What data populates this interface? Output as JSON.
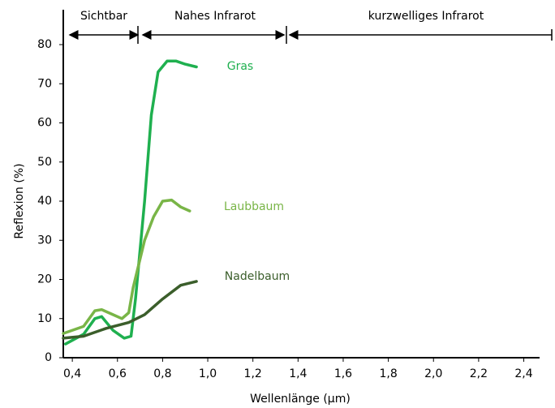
{
  "chart_data": {
    "type": "line",
    "ylabel": "Reflexion (%)",
    "xlabel": "Wellenlänge (μm)",
    "xlim": [
      0.36,
      2.47
    ],
    "ylim": [
      0,
      80
    ],
    "xticks": [
      {
        "value": 0.4,
        "label": "0,4"
      },
      {
        "value": 0.6,
        "label": "0,6"
      },
      {
        "value": 0.8,
        "label": "0,8"
      },
      {
        "value": 1.0,
        "label": "1,0"
      },
      {
        "value": 1.2,
        "label": "1,2"
      },
      {
        "value": 1.4,
        "label": "1,4"
      },
      {
        "value": 1.6,
        "label": "1,6"
      },
      {
        "value": 1.8,
        "label": "1,8"
      },
      {
        "value": 2.0,
        "label": "2,0"
      },
      {
        "value": 2.2,
        "label": "2,2"
      },
      {
        "value": 2.4,
        "label": "2,4"
      }
    ],
    "yticks": [
      0,
      10,
      20,
      30,
      40,
      50,
      60,
      70,
      80
    ],
    "bands": [
      "Sichtbar",
      "Nahes Infrarot",
      "kurzwelliges Infrarot"
    ],
    "series": [
      {
        "name": "Gras",
        "color": "#1fb04f",
        "x": [
          0.37,
          0.45,
          0.5,
          0.53,
          0.58,
          0.63,
          0.66,
          0.68,
          0.72,
          0.75,
          0.78,
          0.82,
          0.86,
          0.9,
          0.95
        ],
        "values": [
          3.5,
          6,
          10,
          10.5,
          7,
          5,
          5.5,
          15,
          40,
          62,
          73,
          75.8,
          75.8,
          75,
          74.3
        ]
      },
      {
        "name": "Laubbaum",
        "color": "#79b547",
        "x": [
          0.36,
          0.45,
          0.5,
          0.53,
          0.58,
          0.62,
          0.65,
          0.67,
          0.72,
          0.76,
          0.8,
          0.84,
          0.88,
          0.92
        ],
        "values": [
          6.2,
          8,
          12,
          12.3,
          11,
          10,
          11.5,
          18,
          30,
          36,
          40,
          40.3,
          38.5,
          37.5
        ]
      },
      {
        "name": "Nadelbaum",
        "color": "#3b5e2b",
        "x": [
          0.36,
          0.45,
          0.55,
          0.65,
          0.72,
          0.8,
          0.88,
          0.95
        ],
        "values": [
          5,
          5.5,
          7.5,
          9,
          11,
          15,
          18.5,
          19.5
        ]
      }
    ]
  }
}
